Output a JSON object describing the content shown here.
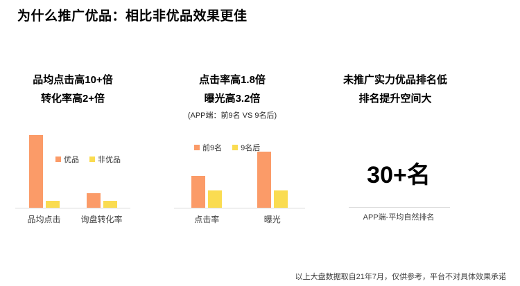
{
  "page": {
    "title": "为什么推广优品：相比非优品效果更佳",
    "footnote": "以上大盘数据取自21年7月，仅供参考，平台不对具体效果承诺"
  },
  "columns": {
    "left": {
      "heading_line1": "品均点击高10+倍",
      "heading_line2": "转化率高2+倍"
    },
    "middle": {
      "heading_line1": "点击率高1.8倍",
      "heading_line2": "曝光高3.2倍",
      "subtitle": "(APP端：前9名 VS 9名后)"
    },
    "right": {
      "heading_line1": "未推广实力优品排名低",
      "heading_line2": "排名提升空间大",
      "metric_value": "30+名",
      "metric_caption": "APP端-平均自然排名"
    }
  },
  "colors": {
    "bar_orange": "#FB9B68",
    "bar_yellow": "#FADC51",
    "accent_orange": "#ED7D31",
    "axis_line": "#D9D9D9"
  },
  "chart_data": [
    {
      "id": "premium-vs-nonpremium",
      "type": "bar",
      "categories": [
        "品均点击",
        "询盘转化率"
      ],
      "series": [
        {
          "name": "优品",
          "color": "#FB9B68",
          "values": [
            10.6,
            2.1
          ]
        },
        {
          "name": "非优品",
          "color": "#FADC51",
          "values": [
            1,
            1
          ]
        }
      ],
      "title": "",
      "xlabel": "",
      "ylabel": "",
      "ylim": [
        0,
        11
      ],
      "grid": false,
      "legend_position": "inside-middle",
      "note": "values are multiples relative to 非优品 = 1"
    },
    {
      "id": "top9-vs-after9",
      "type": "bar",
      "categories": [
        "点击率",
        "曝光"
      ],
      "series": [
        {
          "name": "前9名",
          "color": "#FB9B68",
          "values": [
            1.8,
            3.2
          ]
        },
        {
          "name": "9名后",
          "color": "#FADC51",
          "values": [
            1,
            1
          ]
        }
      ],
      "title": "",
      "xlabel": "",
      "ylabel": "",
      "ylim": [
        0,
        3.5
      ],
      "grid": false,
      "legend_position": "top-left",
      "note": "values are multiples relative to 9名后 = 1"
    }
  ]
}
